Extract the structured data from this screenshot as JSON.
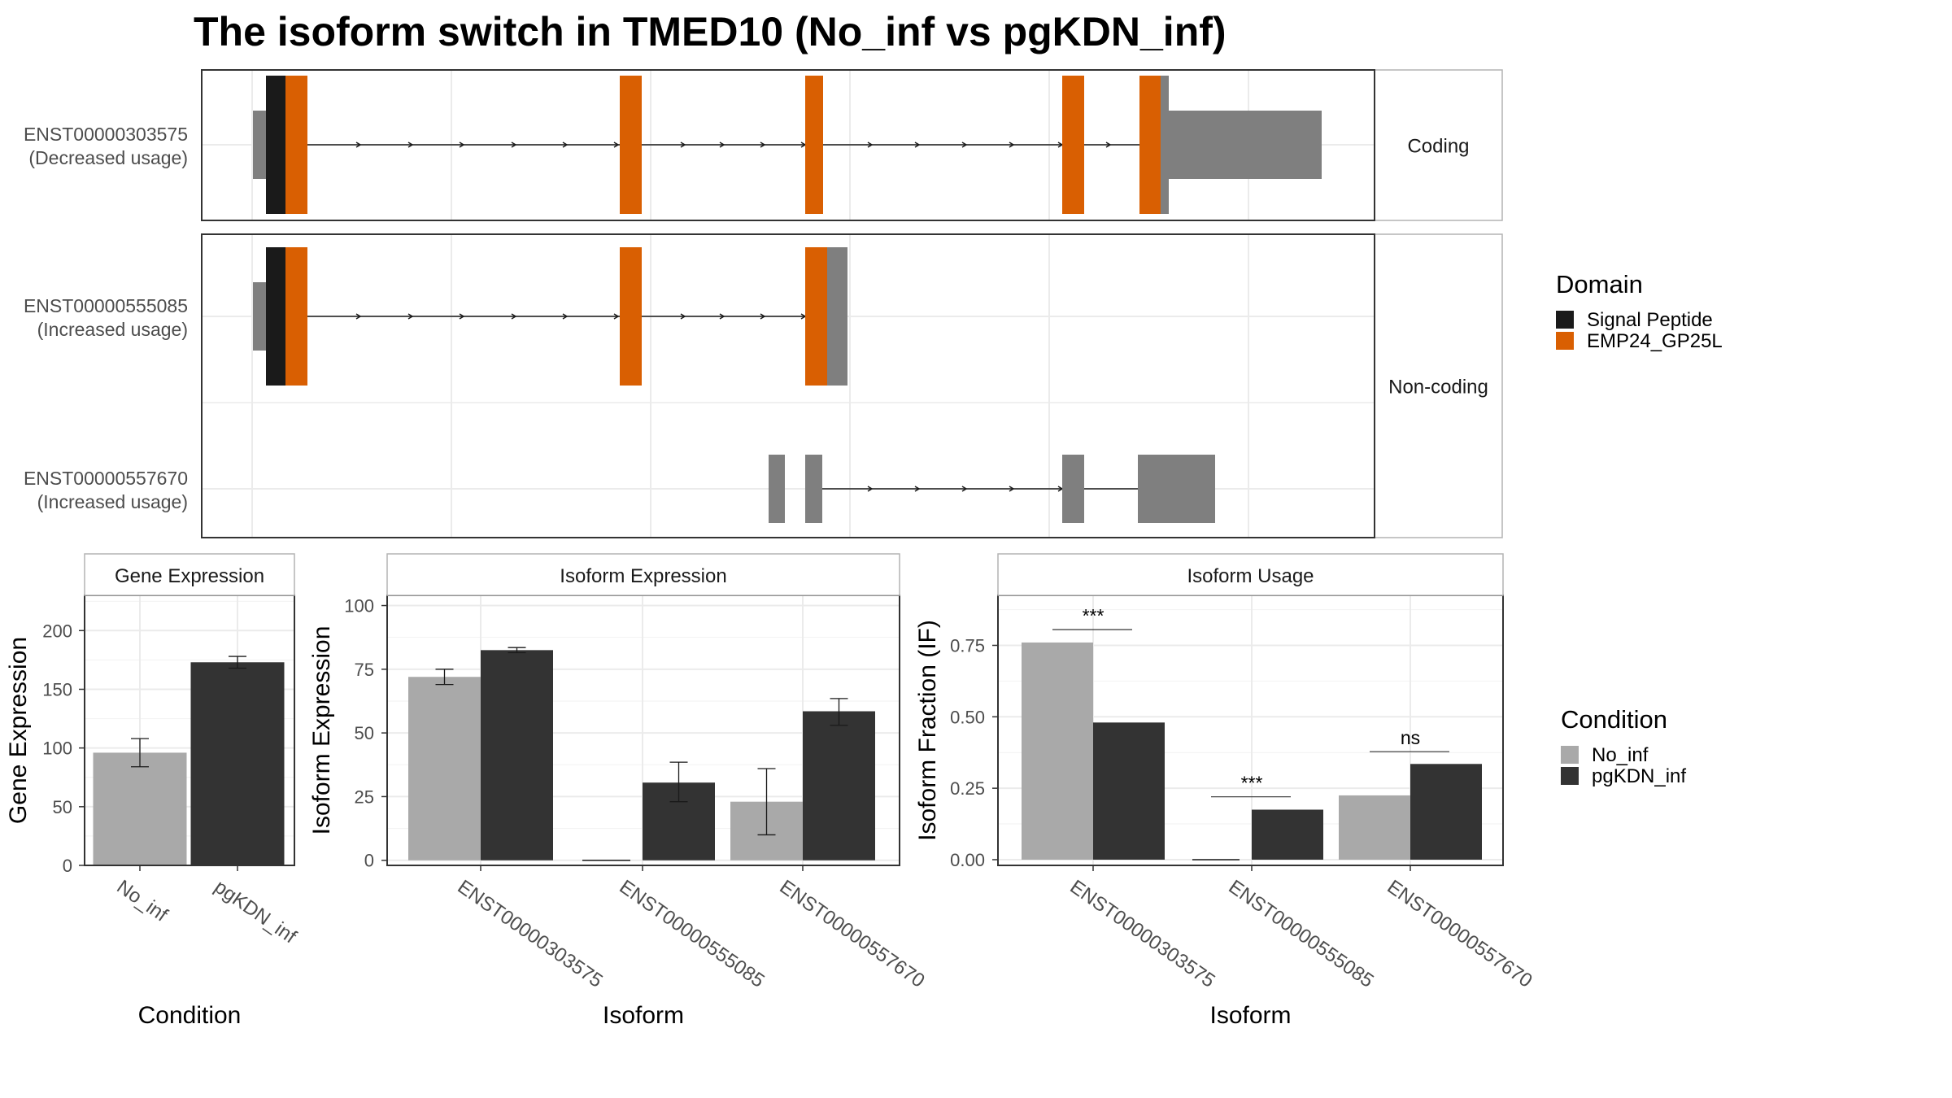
{
  "title": "The isoform switch in TMED10 (No_inf vs pgKDN_inf)",
  "colors": {
    "no_inf": "#A9A9A9",
    "pgkdn_inf": "#333333",
    "signal_peptide": "#1A1A1A",
    "emp24": "#D95F02",
    "utr": "#7F7F7F",
    "grid": "#EBEBEB",
    "strip_border": "#B3B3B3",
    "panel_border": "#333333"
  },
  "domain_legend": {
    "title": "Domain",
    "items": [
      {
        "label": "Signal Peptide",
        "color": "#1A1A1A"
      },
      {
        "label": "EMP24_GP25L",
        "color": "#D95F02"
      }
    ]
  },
  "condition_legend": {
    "title": "Condition",
    "items": [
      {
        "label": "No_inf",
        "color": "#A9A9A9"
      },
      {
        "label": "pgKDN_inf",
        "color": "#333333"
      }
    ]
  },
  "transcripts": {
    "strips": {
      "coding": "Coding",
      "noncoding": "Non-coding"
    },
    "rows": [
      {
        "id": "ENST00000303575",
        "usage": "(Decreased usage)"
      },
      {
        "id": "ENST00000555085",
        "usage": "(Increased usage)"
      },
      {
        "id": "ENST00000557670",
        "usage": "(Increased usage)"
      }
    ]
  },
  "chart_data": [
    {
      "type": "bar",
      "title": "Gene Expression",
      "xlabel": "Condition",
      "ylabel": "Gene Expression",
      "categories": [
        "No_inf",
        "pgKDN_inf"
      ],
      "values": [
        96,
        173
      ],
      "error_low": [
        84,
        168
      ],
      "error_high": [
        108,
        178
      ],
      "ylim": [
        0,
        230
      ],
      "yticks": [
        0,
        50,
        100,
        150,
        200
      ],
      "colors": [
        "#A9A9A9",
        "#333333"
      ]
    },
    {
      "type": "bar",
      "title": "Isoform Expression",
      "xlabel": "Isoform",
      "ylabel": "Isoform Expression",
      "categories": [
        "ENST00000303575",
        "ENST00000555085",
        "ENST00000557670"
      ],
      "series": [
        {
          "name": "No_inf",
          "values": [
            72,
            0,
            23
          ],
          "error_low": [
            69,
            0,
            10
          ],
          "error_high": [
            75,
            0,
            36
          ]
        },
        {
          "name": "pgKDN_inf",
          "values": [
            82.5,
            30.5,
            58.5
          ],
          "error_low": [
            81.5,
            23,
            53
          ],
          "error_high": [
            83.5,
            38.5,
            63.5
          ]
        }
      ],
      "ylim": [
        -2,
        104
      ],
      "yticks": [
        0,
        25,
        50,
        75,
        100
      ]
    },
    {
      "type": "bar",
      "title": "Isoform Usage",
      "xlabel": "Isoform",
      "ylabel": "Isoform Fraction (IF)",
      "categories": [
        "ENST00000303575",
        "ENST00000555085",
        "ENST00000557670"
      ],
      "series": [
        {
          "name": "No_inf",
          "values": [
            0.76,
            0.0,
            0.225
          ]
        },
        {
          "name": "pgKDN_inf",
          "values": [
            0.48,
            0.175,
            0.335
          ]
        }
      ],
      "significance": [
        {
          "label": "***",
          "y": 0.805
        },
        {
          "label": "***",
          "y": 0.22
        },
        {
          "label": "ns",
          "y": 0.378
        }
      ],
      "ylim": [
        -0.02,
        0.925
      ],
      "yticks": [
        "0.00",
        "0.25",
        "0.50",
        "0.75"
      ]
    }
  ]
}
